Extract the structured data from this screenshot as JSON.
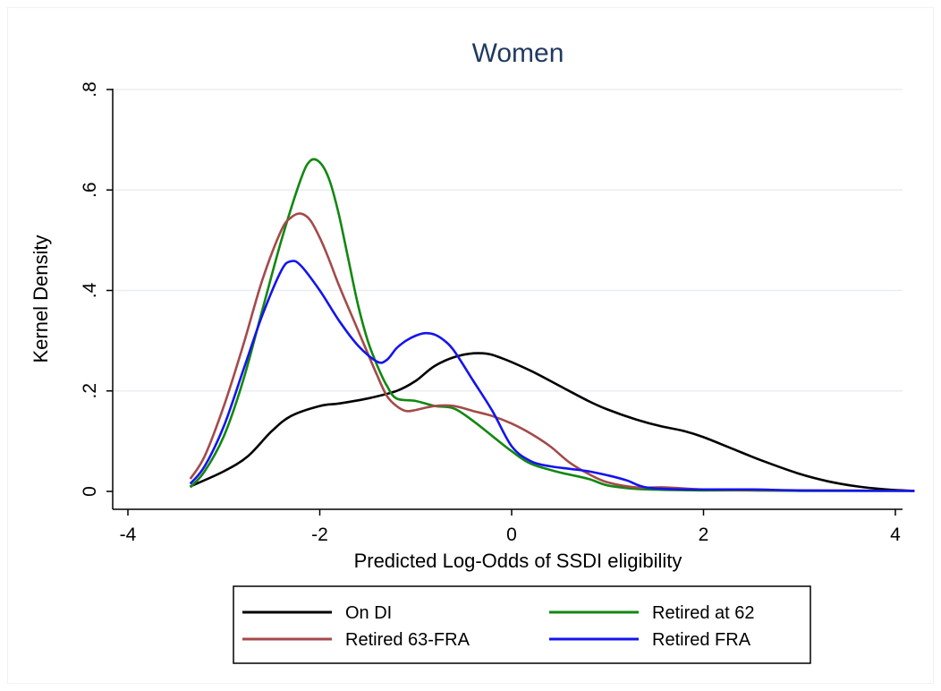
{
  "chart_data": {
    "type": "line",
    "title": "Women",
    "xlabel": "Predicted Log-Odds of SSDI eligibility",
    "ylabel": "Kernel Density",
    "xlim": [
      -4.2,
      4.3
    ],
    "ylim": [
      0,
      0.8
    ],
    "xticks": [
      -4,
      -2,
      0,
      2,
      4
    ],
    "xtick_labels": [
      "-4",
      "-2",
      "0",
      "2",
      "4"
    ],
    "yticks": [
      0,
      0.2,
      0.4,
      0.6,
      0.8
    ],
    "ytick_labels": [
      "0",
      ".2",
      ".4",
      ".6",
      ".8"
    ],
    "grid": "horizontal",
    "legend_position": "bottom",
    "series": [
      {
        "name": "On DI",
        "color": "#000000",
        "x": [
          -3.35,
          -3.0,
          -2.75,
          -2.5,
          -2.3,
          -2.0,
          -1.8,
          -1.5,
          -1.2,
          -1.0,
          -0.8,
          -0.55,
          -0.3,
          -0.1,
          0.2,
          0.5,
          0.8,
          1.0,
          1.3,
          1.55,
          1.8,
          2.0,
          2.3,
          2.6,
          3.0,
          3.3,
          3.6,
          3.9,
          4.2
        ],
        "y": [
          0.01,
          0.04,
          0.07,
          0.12,
          0.15,
          0.17,
          0.175,
          0.185,
          0.2,
          0.22,
          0.25,
          0.27,
          0.275,
          0.265,
          0.24,
          0.21,
          0.18,
          0.163,
          0.143,
          0.13,
          0.12,
          0.108,
          0.085,
          0.062,
          0.035,
          0.02,
          0.01,
          0.004,
          0.001
        ]
      },
      {
        "name": "Retired at 62",
        "color": "#118811",
        "x": [
          -3.35,
          -3.2,
          -3.0,
          -2.8,
          -2.6,
          -2.4,
          -2.2,
          -2.1,
          -2.0,
          -1.9,
          -1.8,
          -1.7,
          -1.6,
          -1.5,
          -1.4,
          -1.3,
          -1.2,
          -1.0,
          -0.8,
          -0.6,
          -0.4,
          -0.2,
          0.0,
          0.2,
          0.5,
          0.8,
          1.0,
          1.3,
          1.6,
          2.0,
          2.5,
          3.0,
          4.2
        ],
        "y": [
          0.008,
          0.04,
          0.11,
          0.22,
          0.36,
          0.5,
          0.62,
          0.658,
          0.655,
          0.62,
          0.55,
          0.46,
          0.37,
          0.3,
          0.25,
          0.21,
          0.185,
          0.18,
          0.17,
          0.165,
          0.14,
          0.11,
          0.08,
          0.055,
          0.038,
          0.025,
          0.012,
          0.005,
          0.003,
          0.002,
          0.002,
          0.001,
          0.001
        ]
      },
      {
        "name": "Retired 63-FRA",
        "color": "#a44a4a",
        "x": [
          -3.35,
          -3.2,
          -3.0,
          -2.8,
          -2.6,
          -2.4,
          -2.3,
          -2.2,
          -2.1,
          -2.0,
          -1.9,
          -1.8,
          -1.6,
          -1.4,
          -1.3,
          -1.2,
          -1.1,
          -1.0,
          -0.8,
          -0.6,
          -0.4,
          -0.2,
          0.0,
          0.2,
          0.4,
          0.6,
          0.8,
          1.0,
          1.3,
          1.6,
          2.0,
          2.5,
          3.0,
          4.2
        ],
        "y": [
          0.025,
          0.07,
          0.17,
          0.29,
          0.42,
          0.52,
          0.545,
          0.553,
          0.54,
          0.505,
          0.46,
          0.41,
          0.32,
          0.23,
          0.19,
          0.17,
          0.16,
          0.162,
          0.17,
          0.17,
          0.16,
          0.15,
          0.135,
          0.115,
          0.09,
          0.058,
          0.035,
          0.018,
          0.008,
          0.008,
          0.004,
          0.003,
          0.002,
          0.001
        ]
      },
      {
        "name": "Retired FRA",
        "color": "#1414ee",
        "x": [
          -3.35,
          -3.2,
          -3.0,
          -2.8,
          -2.6,
          -2.4,
          -2.3,
          -2.2,
          -2.0,
          -1.8,
          -1.6,
          -1.4,
          -1.3,
          -1.2,
          -1.1,
          -1.0,
          -0.9,
          -0.8,
          -0.7,
          -0.6,
          -0.4,
          -0.2,
          0.0,
          0.2,
          0.4,
          0.6,
          0.8,
          1.0,
          1.2,
          1.4,
          1.8,
          2.5,
          3.0,
          4.2
        ],
        "y": [
          0.015,
          0.05,
          0.13,
          0.24,
          0.35,
          0.44,
          0.458,
          0.45,
          0.4,
          0.34,
          0.29,
          0.258,
          0.262,
          0.285,
          0.3,
          0.31,
          0.315,
          0.312,
          0.3,
          0.28,
          0.22,
          0.16,
          0.09,
          0.06,
          0.05,
          0.045,
          0.04,
          0.032,
          0.022,
          0.008,
          0.004,
          0.004,
          0.002,
          0.001
        ]
      }
    ]
  }
}
